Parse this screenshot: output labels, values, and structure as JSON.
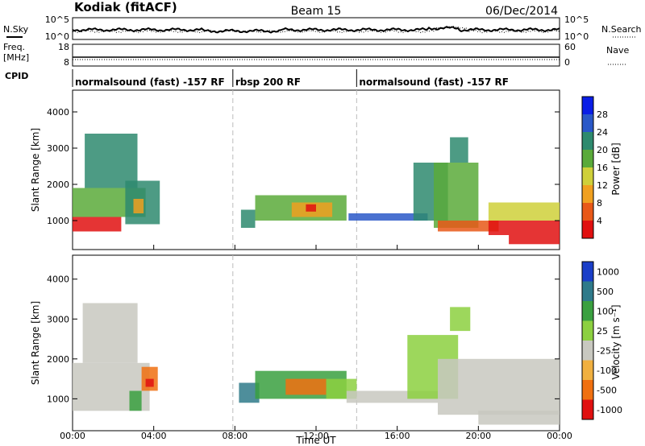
{
  "header": {
    "station": "Kodiak (fitACF)",
    "beam": "Beam 15",
    "date": "06/Dec/2014"
  },
  "top_panels": {
    "nsky_label": "N.Sky",
    "nsky_ticks": [
      "10^5",
      "10^0"
    ],
    "nsearch_label": "N.Search",
    "nsearch_ticks": [
      "10^5",
      "10^0"
    ],
    "freq_label": "Freq.",
    "freq_unit": "[MHz]",
    "freq_ticks": [
      "18",
      "8"
    ],
    "nave_label": "Nave",
    "nave_ticks": [
      "60",
      "0"
    ],
    "cpid_label": "CPID",
    "cpid_segments": [
      {
        "label": "normalsound (fast) -157 RF",
        "start_h": 0.0,
        "end_h": 7.9
      },
      {
        "label": "rbsp 200 RF",
        "start_h": 7.9,
        "end_h": 14.0
      },
      {
        "label": "normalsound (fast) -157 RF",
        "start_h": 14.0,
        "end_h": 24.0
      }
    ]
  },
  "chart_data": [
    {
      "type": "heatmap",
      "name": "power",
      "ylabel": "Slant Range [km]",
      "yticks": [
        "1000",
        "2000",
        "3000",
        "4000"
      ],
      "ylim": [
        200,
        4600
      ],
      "xlim": [
        0,
        24
      ],
      "colorbar_label": "Power [dB]",
      "colorbar_ticks": [
        "4",
        "8",
        "12",
        "16",
        "20",
        "24",
        "28"
      ],
      "colors": [
        "#0a1ee6",
        "#2a58c8",
        "#2e8a6e",
        "#5aaa3a",
        "#cfd03a",
        "#f0a020",
        "#e85818",
        "#e01010"
      ],
      "regions": [
        {
          "t0": 0.0,
          "t1": 2.4,
          "r0": 700,
          "r1": 1100,
          "level": 7
        },
        {
          "t0": 0.0,
          "t1": 3.6,
          "r0": 1100,
          "r1": 1900,
          "level": 3
        },
        {
          "t0": 0.6,
          "t1": 3.2,
          "r0": 1900,
          "r1": 3400,
          "level": 2
        },
        {
          "t0": 2.6,
          "t1": 4.3,
          "r0": 900,
          "r1": 2100,
          "level": 2
        },
        {
          "t0": 3.0,
          "t1": 3.5,
          "r0": 1200,
          "r1": 1600,
          "level": 5
        },
        {
          "t0": 8.3,
          "t1": 9.0,
          "r0": 800,
          "r1": 1300,
          "level": 2
        },
        {
          "t0": 9.0,
          "t1": 13.5,
          "r0": 1000,
          "r1": 1700,
          "level": 3
        },
        {
          "t0": 10.8,
          "t1": 12.8,
          "r0": 1100,
          "r1": 1500,
          "level": 5
        },
        {
          "t0": 11.5,
          "t1": 12.0,
          "r0": 1250,
          "r1": 1450,
          "level": 7
        },
        {
          "t0": 13.6,
          "t1": 17.5,
          "r0": 1000,
          "r1": 1200,
          "level": 1
        },
        {
          "t0": 16.8,
          "t1": 18.5,
          "r0": 1000,
          "r1": 2600,
          "level": 2
        },
        {
          "t0": 17.8,
          "t1": 20.0,
          "r0": 800,
          "r1": 2600,
          "level": 3
        },
        {
          "t0": 18.6,
          "t1": 19.5,
          "r0": 2600,
          "r1": 3300,
          "level": 2
        },
        {
          "t0": 18.0,
          "t1": 21.0,
          "r0": 700,
          "r1": 1000,
          "level": 6
        },
        {
          "t0": 20.5,
          "t1": 24.0,
          "r0": 600,
          "r1": 1000,
          "level": 7
        },
        {
          "t0": 20.5,
          "t1": 24.0,
          "r0": 1000,
          "r1": 1500,
          "level": 4
        },
        {
          "t0": 21.5,
          "t1": 24.0,
          "r0": 350,
          "r1": 600,
          "level": 7
        }
      ]
    },
    {
      "type": "heatmap",
      "name": "velocity",
      "ylabel": "Slant Range [km]",
      "yticks": [
        "1000",
        "2000",
        "3000",
        "4000"
      ],
      "ylim": [
        200,
        4600
      ],
      "xlim": [
        0,
        24
      ],
      "xticks": [
        "00:00",
        "04:00",
        "08:00",
        "12:00",
        "16:00",
        "20:00",
        "00:00"
      ],
      "xlabel": "Time UT",
      "colorbar_label": "Velocity [m s⁻¹]",
      "colorbar_ticks": [
        "1000",
        "500",
        "100",
        "25",
        "-25",
        "-100",
        "-500",
        "-1000"
      ],
      "colors": [
        "#1a3ec8",
        "#2f7a8a",
        "#3aa040",
        "#8cd040",
        "#c8c8c0",
        "#f0b040",
        "#f07010",
        "#e01010"
      ],
      "regions": [
        {
          "t0": 0.0,
          "t1": 3.8,
          "r0": 700,
          "r1": 1900,
          "level": 4
        },
        {
          "t0": 0.5,
          "t1": 3.2,
          "r0": 1900,
          "r1": 3400,
          "level": 4
        },
        {
          "t0": 3.4,
          "t1": 4.2,
          "r0": 1200,
          "r1": 1800,
          "level": 6
        },
        {
          "t0": 3.6,
          "t1": 4.0,
          "r0": 1300,
          "r1": 1500,
          "level": 7
        },
        {
          "t0": 2.8,
          "t1": 3.4,
          "r0": 700,
          "r1": 1200,
          "level": 2
        },
        {
          "t0": 8.2,
          "t1": 9.2,
          "r0": 900,
          "r1": 1400,
          "level": 1
        },
        {
          "t0": 9.0,
          "t1": 13.5,
          "r0": 1000,
          "r1": 1700,
          "level": 2
        },
        {
          "t0": 10.5,
          "t1": 12.5,
          "r0": 1100,
          "r1": 1500,
          "level": 6
        },
        {
          "t0": 12.5,
          "t1": 14.0,
          "r0": 1000,
          "r1": 1500,
          "level": 3
        },
        {
          "t0": 13.5,
          "t1": 18.0,
          "r0": 900,
          "r1": 1200,
          "level": 4
        },
        {
          "t0": 16.5,
          "t1": 19.0,
          "r0": 1000,
          "r1": 2600,
          "level": 3
        },
        {
          "t0": 18.0,
          "t1": 24.0,
          "r0": 600,
          "r1": 2000,
          "level": 4
        },
        {
          "t0": 20.0,
          "t1": 24.0,
          "r0": 350,
          "r1": 700,
          "level": 4
        },
        {
          "t0": 18.6,
          "t1": 19.6,
          "r0": 2700,
          "r1": 3300,
          "level": 3
        }
      ]
    }
  ]
}
